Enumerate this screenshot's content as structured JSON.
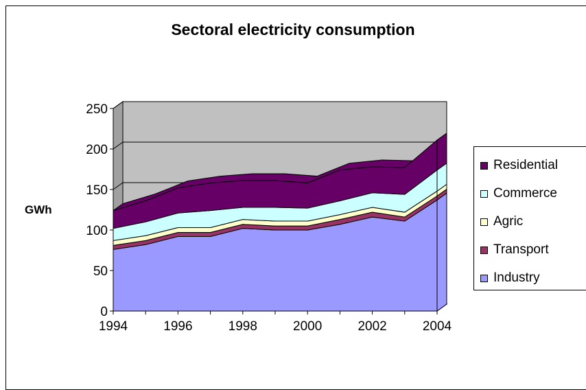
{
  "chart_data": {
    "type": "area",
    "title": "Sectoral electricity consumption",
    "xlabel": "",
    "ylabel": "GWh",
    "x": [
      1994,
      1995,
      1996,
      1997,
      1998,
      1999,
      2000,
      2001,
      2002,
      2003,
      2004
    ],
    "x_tick_labels": [
      "1994",
      "1996",
      "1998",
      "2000",
      "2002",
      "2004"
    ],
    "y_tick_labels": [
      "0",
      "50",
      "100",
      "150",
      "200",
      "250"
    ],
    "ylim": [
      0,
      250
    ],
    "stacked": true,
    "three_d": true,
    "grid": "horizontal",
    "legend_position": "right",
    "series": [
      {
        "name": "Industry",
        "color": "#9999ff",
        "values": [
          76,
          82,
          92,
          92,
          102,
          100,
          100,
          107,
          116,
          111,
          137
        ]
      },
      {
        "name": "Transport",
        "color": "#993366",
        "values": [
          5,
          5,
          5,
          5,
          5,
          5,
          5,
          6,
          6,
          5,
          5
        ]
      },
      {
        "name": "Agric",
        "color": "#ffffcc",
        "values": [
          6,
          6,
          6,
          6,
          6,
          6,
          6,
          6,
          6,
          6,
          6
        ]
      },
      {
        "name": "Commerce",
        "color": "#ccffff",
        "values": [
          15,
          17,
          18,
          21,
          15,
          17,
          16,
          17,
          18,
          22,
          26
        ]
      },
      {
        "name": "Residential",
        "color": "#660066",
        "values": [
          22,
          26,
          31,
          34,
          33,
          33,
          31,
          38,
          32,
          33,
          37
        ]
      }
    ],
    "plot_back_color": "#c0c0c0"
  }
}
